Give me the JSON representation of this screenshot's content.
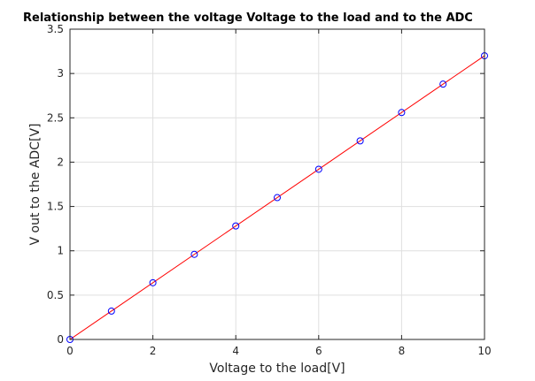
{
  "chart_data": {
    "type": "line",
    "title": "Relationship between the voltage Voltage to the load and to the ADC",
    "xlabel": "Voltage to the load[V]",
    "ylabel": "V out to the ADC[V]",
    "xlim": [
      0,
      10
    ],
    "ylim": [
      0,
      3.5
    ],
    "xticks": [
      "0",
      "2",
      "4",
      "6",
      "8",
      "10"
    ],
    "yticks": [
      "0",
      "0.5",
      "1",
      "1.5",
      "2",
      "2.5",
      "3",
      "3.5"
    ],
    "grid": true,
    "legend": "none",
    "series": [
      {
        "style": "markers",
        "marker": "circle",
        "color": "#0000ff",
        "x": [
          0,
          1,
          2,
          3,
          4,
          5,
          6,
          7,
          8,
          9,
          10
        ],
        "y": [
          0.0,
          0.32,
          0.64,
          0.96,
          1.28,
          1.6,
          1.92,
          2.24,
          2.56,
          2.88,
          3.2
        ]
      },
      {
        "style": "line",
        "color": "#ff0000",
        "x": [
          0,
          10
        ],
        "y": [
          0.0,
          3.2
        ]
      }
    ]
  }
}
